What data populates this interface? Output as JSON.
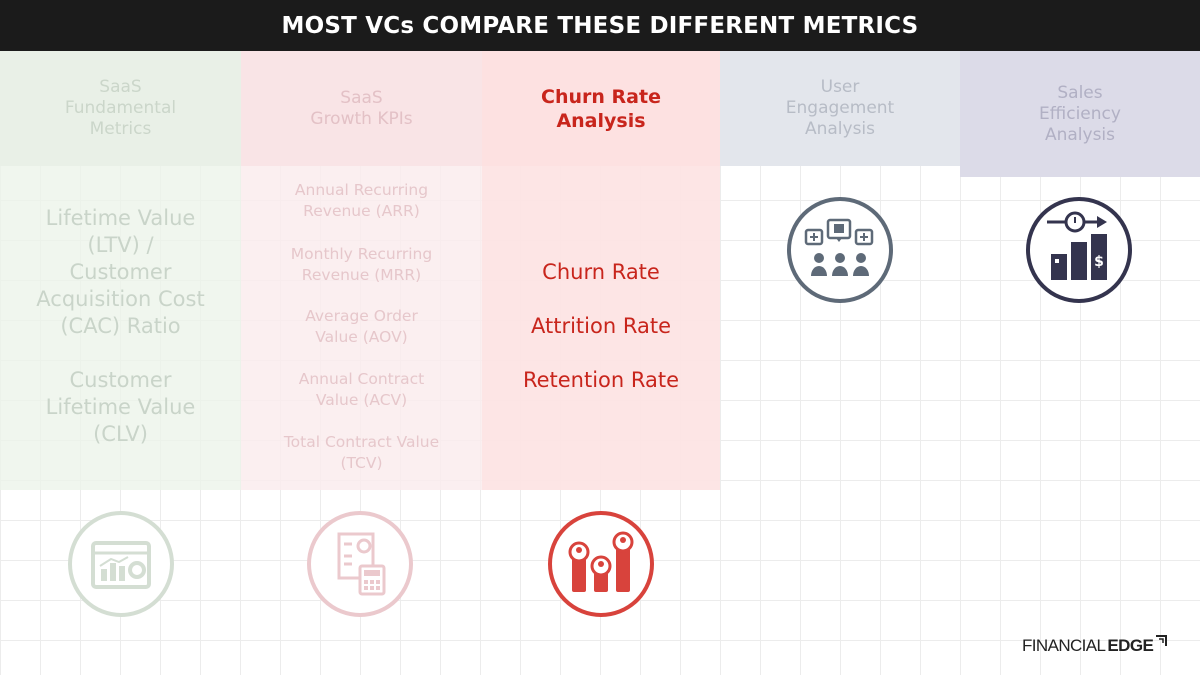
{
  "title": "MOST VCs COMPARE THESE DIFFERENT METRICS",
  "columns": [
    {
      "header": [
        "SaaS",
        "Fundamental",
        "Metrics"
      ],
      "items": [
        "Lifetime Value",
        "(LTV) /",
        "Customer",
        "Acquisition Cost",
        "(CAC) Ratio",
        "Customer",
        "Lifetime Value",
        "(CLV)"
      ],
      "icon": "dashboard-chart-icon",
      "color": "#c9d4c9"
    },
    {
      "header": [
        "SaaS",
        "Growth KPIs"
      ],
      "items": [
        "Annual Recurring",
        "Revenue (ARR)",
        "Monthly Recurring",
        "Revenue (MRR)",
        "Average Order",
        "Value (AOV)",
        "Annual Contract",
        "Value (ACV)",
        "Total Contract Value",
        "(TCV)"
      ],
      "icon": "invoice-calculator-icon",
      "color": "#e6c7cb"
    },
    {
      "header": [
        "Churn Rate",
        "Analysis"
      ],
      "items": [
        "Churn Rate",
        "Attrition Rate",
        "Retention Rate"
      ],
      "icon": "people-chart-icon",
      "color": "#c8251c"
    },
    {
      "header": [
        "User",
        "Engagement",
        "Analysis"
      ],
      "icon": "user-engagement-icon",
      "color": "#5e6a78"
    },
    {
      "header": [
        "Sales",
        "Efficiency",
        "Analysis"
      ],
      "icon": "sales-efficiency-icon",
      "color": "#34344e"
    }
  ],
  "brand": {
    "part1": "FINANCIAL",
    "part2": "EDGE"
  }
}
